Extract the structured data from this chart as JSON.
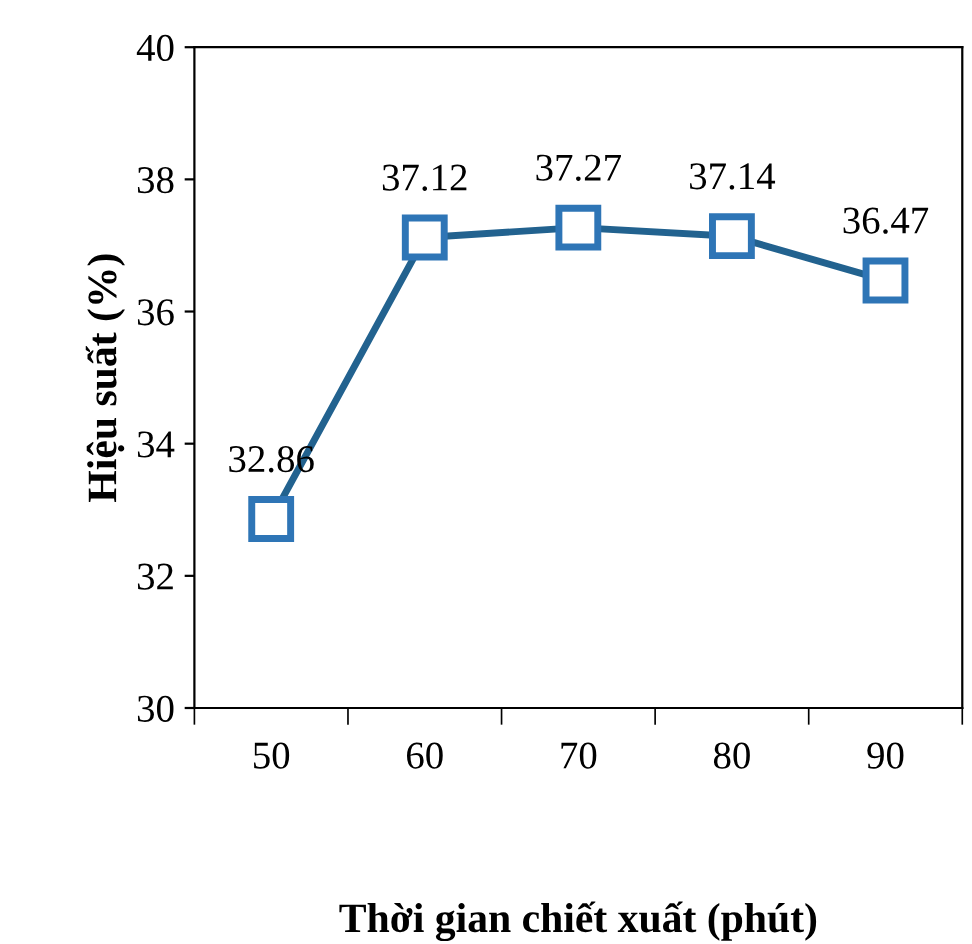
{
  "chart_data": {
    "type": "line",
    "xlabel": "Thời gian chiết xuất (phút)",
    "ylabel": "Hiệu suất (%)",
    "categories": [
      "50",
      "60",
      "70",
      "80",
      "90"
    ],
    "series": [
      {
        "color": "#2e75b6",
        "values": [
          32.86,
          37.12,
          37.27,
          37.14,
          36.47
        ]
      }
    ],
    "ylim": [
      30,
      40
    ],
    "yticks": [
      30,
      32,
      34,
      36,
      38,
      40
    ],
    "marker": "square",
    "line_style": "solid",
    "grid": false,
    "legend": false,
    "data_labels": true
  }
}
